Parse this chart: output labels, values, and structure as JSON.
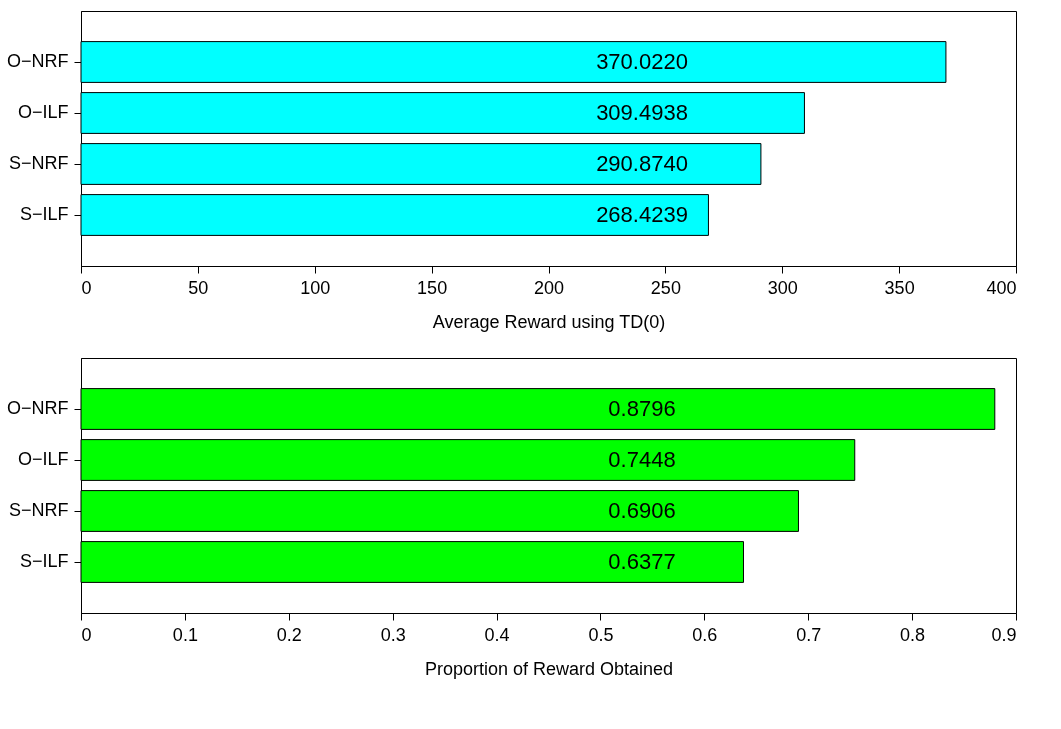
{
  "chart_data": [
    {
      "type": "bar",
      "orientation": "horizontal",
      "categories": [
        "O−NRF",
        "O−ILF",
        "S−NRF",
        "S−ILF"
      ],
      "values": [
        370.022,
        309.4938,
        290.874,
        268.4239
      ],
      "value_labels": [
        "370.0220",
        "309.4938",
        "290.8740",
        "268.4239"
      ],
      "color": "#00ffff",
      "xlabel": "Average Reward using TD(0)",
      "xlim": [
        0,
        400
      ],
      "xticks": [
        0,
        50,
        100,
        150,
        200,
        250,
        300,
        350,
        400
      ],
      "grid": false
    },
    {
      "type": "bar",
      "orientation": "horizontal",
      "categories": [
        "O−NRF",
        "O−ILF",
        "S−NRF",
        "S−ILF"
      ],
      "values": [
        0.8796,
        0.7448,
        0.6906,
        0.6377
      ],
      "value_labels": [
        "0.8796",
        "0.7448",
        "0.6906",
        "0.6377"
      ],
      "color": "#00ff00",
      "xlabel": "Proportion of Reward Obtained",
      "xlim": [
        0,
        0.9
      ],
      "xticks": [
        0,
        0.1,
        0.2,
        0.3,
        0.4,
        0.5,
        0.6,
        0.7,
        0.8,
        0.9
      ],
      "grid": false
    }
  ]
}
